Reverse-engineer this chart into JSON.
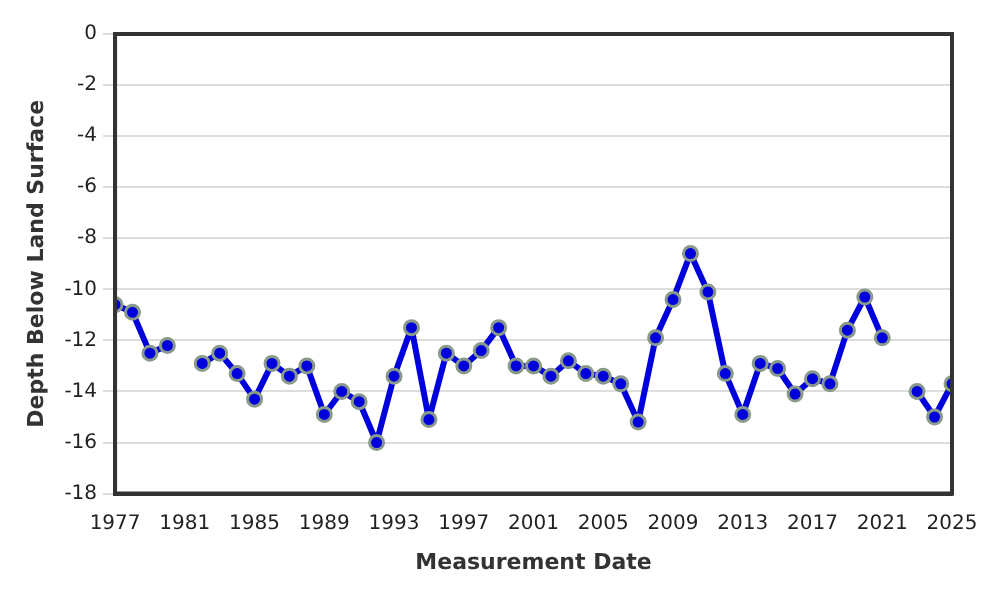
{
  "chart_data": {
    "type": "line",
    "xlabel": "Measurement Date",
    "ylabel": "Depth Below Land Surface",
    "x": [
      1977,
      1978,
      1979,
      1980,
      1981,
      1982,
      1983,
      1984,
      1985,
      1986,
      1987,
      1988,
      1989,
      1990,
      1991,
      1992,
      1993,
      1994,
      1995,
      1996,
      1997,
      1998,
      1999,
      2000,
      2001,
      2002,
      2003,
      2004,
      2005,
      2006,
      2007,
      2008,
      2009,
      2010,
      2011,
      2012,
      2013,
      2014,
      2015,
      2016,
      2017,
      2018,
      2019,
      2020,
      2021,
      2022,
      2023,
      2024,
      2025
    ],
    "series": [
      {
        "color": "#0000dd",
        "values": [
          -10.6,
          -10.9,
          -12.5,
          -12.2,
          null,
          -12.9,
          -12.5,
          -13.3,
          -14.3,
          -12.9,
          -13.4,
          -13.0,
          -14.9,
          -14.0,
          -14.4,
          -16.0,
          -13.4,
          -11.5,
          -15.1,
          -12.5,
          -13.0,
          -12.4,
          -11.5,
          -13.0,
          -13.0,
          -13.4,
          -12.8,
          -13.3,
          -13.4,
          -13.7,
          -15.2,
          -11.9,
          -10.4,
          -8.6,
          -10.1,
          -13.3,
          -14.9,
          -12.9,
          -13.1,
          -14.1,
          -13.5,
          -13.7,
          -11.6,
          -10.3,
          -11.9,
          null,
          -14.0,
          -15.0,
          -13.7
        ]
      }
    ],
    "xlim": [
      1977,
      2025
    ],
    "xticks": [
      1977,
      1981,
      1985,
      1989,
      1993,
      1997,
      2001,
      2005,
      2009,
      2013,
      2017,
      2021,
      2025
    ],
    "ylim": [
      -18,
      0
    ],
    "yticks": [
      -18,
      -16,
      -14,
      -12,
      -10,
      -8,
      -6,
      -4,
      -2,
      0
    ],
    "grid": "y",
    "marker": "circle",
    "line_style": "solid",
    "legend": false
  }
}
